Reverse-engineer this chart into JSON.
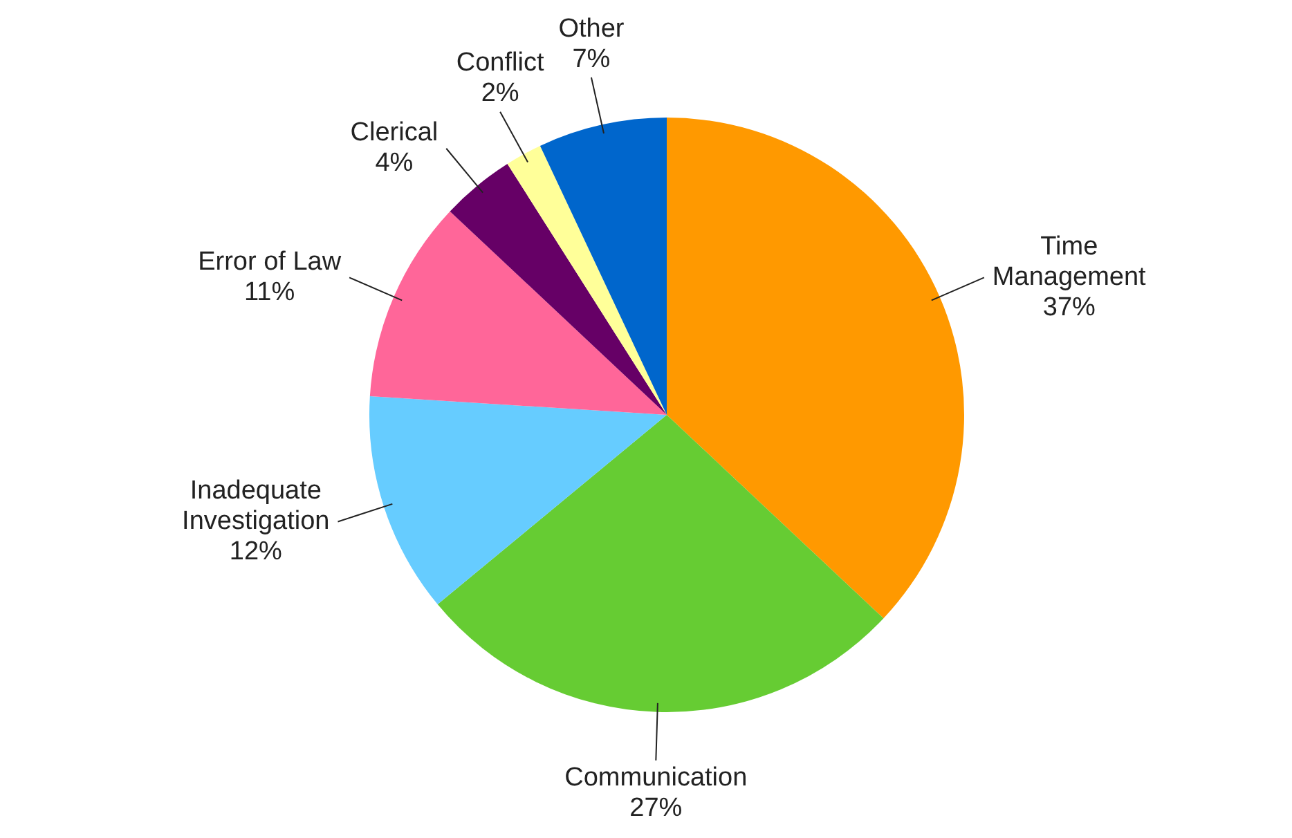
{
  "chart_data": {
    "type": "pie",
    "categories": [
      "Time Management",
      "Communication",
      "Inadequate Investigation",
      "Error of Law",
      "Clerical",
      "Conflict",
      "Other"
    ],
    "values": [
      37,
      27,
      12,
      11,
      4,
      2,
      7
    ],
    "colors": [
      "#ff9900",
      "#66cc33",
      "#66ccff",
      "#ff6699",
      "#660066",
      "#ffff99",
      "#0066cc"
    ],
    "value_labels": [
      "37%",
      "27%",
      "12%",
      "11%",
      "4%",
      "2%",
      "7%"
    ]
  }
}
